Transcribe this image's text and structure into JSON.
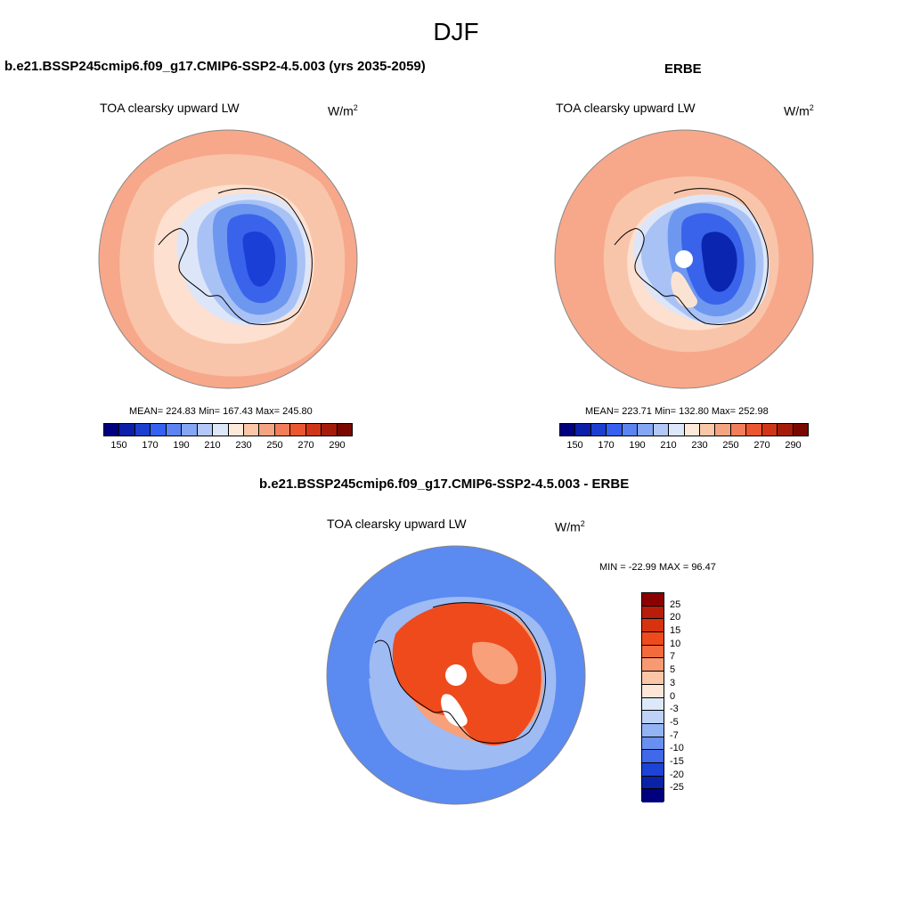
{
  "figure_title": "DJF",
  "panels": [
    {
      "title": "b.e21.BSSP245cmip6.f09_g17.CMIP6-SSP2-4.5.003 (yrs 2035-2059)",
      "variable": "TOA clearsky upward LW",
      "units_base": "W/m",
      "units_exp": "2",
      "stats": "MEAN= 224.83  Min= 167.43  Max= 245.80"
    },
    {
      "title": "ERBE",
      "variable": "TOA clearsky upward LW",
      "units_base": "W/m",
      "units_exp": "2",
      "stats": "MEAN= 223.71  Min= 132.80  Max= 252.98"
    },
    {
      "title": "b.e21.BSSP245cmip6.f09_g17.CMIP6-SSP2-4.5.003 - ERBE",
      "variable": "TOA clearsky upward LW",
      "units_base": "W/m",
      "units_exp": "2",
      "stats": "MIN = -22.99 MAX =  96.47"
    }
  ],
  "colorbar_top": {
    "colors": [
      "#00007f",
      "#0b1fa8",
      "#1d3fcf",
      "#3560f0",
      "#5b83f2",
      "#85a6f4",
      "#b3c8f7",
      "#dde7fa",
      "#fde9d9",
      "#f9c7a8",
      "#f5a482",
      "#f27d5a",
      "#ea5630",
      "#cf3618",
      "#a51d0a",
      "#7a0800"
    ],
    "tick_labels": [
      "150",
      "170",
      "190",
      "210",
      "230",
      "250",
      "270",
      "290"
    ]
  },
  "colorbar_diff": {
    "colors": [
      "#8b0000",
      "#b91c0a",
      "#d8330f",
      "#ee4a1c",
      "#f46a3c",
      "#f79a72",
      "#fac6a7",
      "#fde6d6",
      "#dde9f9",
      "#bdd2f6",
      "#93b3f3",
      "#6990f0",
      "#3f69ea",
      "#1d44d6",
      "#0a22a8",
      "#00007f"
    ],
    "tick_labels": [
      "25",
      "20",
      "15",
      "10",
      "7",
      "5",
      "3",
      "0",
      "-3",
      "-5",
      "-7",
      "-10",
      "-15",
      "-20",
      "-25"
    ]
  },
  "map_colors": {
    "ocean_outer": "#f7a88a",
    "ocean_mid": "#f9c5aa",
    "ocean_inner": "#fde0cf",
    "ice_edge": "#dde6f9",
    "ice_light": "#a9c2f5",
    "ice_mid": "#6e97f0",
    "ice_dark": "#3a63ec",
    "ice_core": "#1a3fd6",
    "ice_deep": "#0a26b0",
    "diff_ocean": "#5b8af0",
    "diff_ocean_light": "#9ebbf4",
    "diff_land": "#ee4a1c",
    "diff_land_light": "#f7a07a",
    "coast": "#000000"
  }
}
